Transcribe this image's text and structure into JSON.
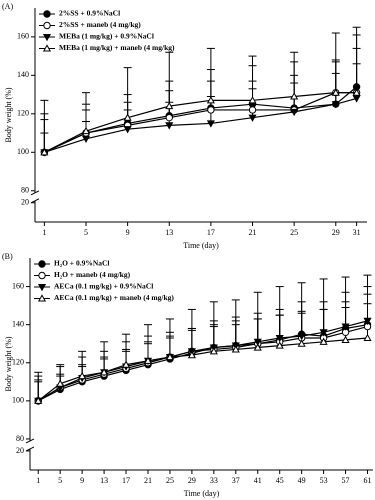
{
  "chart_data": [
    {
      "type": "line",
      "panel_label": "(A)",
      "x_label": "Time (day)",
      "y_label": "Body weight (%)",
      "x": [
        1,
        5,
        9,
        13,
        17,
        21,
        25,
        29,
        31
      ],
      "xlim": [
        0.1,
        32
      ],
      "xticks": [
        1,
        5,
        9,
        13,
        17,
        21,
        25,
        29,
        31
      ],
      "ylim": [
        10,
        175
      ],
      "yticks": [
        20,
        80,
        100,
        120,
        140,
        160
      ],
      "axis_break": [
        20,
        80
      ],
      "series": [
        {
          "name": "2%SS + 0.9%NaCl",
          "color": "#000000",
          "marker": "circle-filled",
          "values": [
            100,
            110,
            115,
            119,
            123,
            125,
            123,
            125,
            134
          ],
          "errors": [
            27,
            15,
            15,
            18,
            20,
            20,
            24,
            22,
            20
          ]
        },
        {
          "name": "2%SS + maneb (4 mg/kg)",
          "color": "#000000",
          "marker": "circle-open",
          "values": [
            100,
            110,
            114,
            118,
            122,
            122,
            122,
            131,
            131
          ],
          "errors": [
            20,
            12,
            12,
            14,
            15,
            15,
            18,
            17,
            30
          ]
        },
        {
          "name": "MEBa (1 mg/kg) + 0.9%NaCl",
          "color": "#000000",
          "marker": "triangle-down-filled",
          "values": [
            100,
            107,
            112,
            114,
            115,
            118,
            121,
            125,
            128
          ],
          "errors": [
            10,
            9,
            10,
            12,
            14,
            15,
            15,
            16,
            18
          ]
        },
        {
          "name": "MEBa (1 mg/kg) + maneb (4 mg/kg)",
          "color": "#000000",
          "marker": "triangle-up-open",
          "values": [
            100,
            111,
            118,
            124,
            127,
            127,
            129,
            131,
            131
          ],
          "errors": [
            17,
            20,
            26,
            28,
            27,
            23,
            23,
            31,
            34
          ]
        }
      ]
    },
    {
      "type": "line",
      "panel_label": "(B)",
      "x_label": "Time (day)",
      "y_label": "Body weight (%)",
      "x": [
        1,
        5,
        9,
        13,
        17,
        21,
        25,
        29,
        33,
        37,
        41,
        45,
        49,
        53,
        57,
        61
      ],
      "xlim": [
        -0.5,
        62
      ],
      "xticks": [
        1,
        5,
        9,
        13,
        17,
        21,
        25,
        29,
        33,
        37,
        41,
        45,
        49,
        53,
        57,
        61
      ],
      "ylim": [
        10,
        175
      ],
      "yticks": [
        20,
        80,
        100,
        120,
        140,
        160
      ],
      "axis_break": [
        20,
        80
      ],
      "series": [
        {
          "name": "H₂O + 0.9%NaCl",
          "color": "#000000",
          "marker": "circle-filled",
          "values": [
            100,
            106,
            110,
            113,
            116,
            119,
            122,
            125,
            128,
            129,
            130,
            132,
            135,
            134,
            138,
            140
          ],
          "errors": [
            13,
            8,
            9,
            10,
            11,
            12,
            12,
            13,
            14,
            15,
            16,
            16,
            17,
            18,
            19,
            20
          ]
        },
        {
          "name": "H₂O + maneb (4 mg/kg)",
          "color": "#000000",
          "marker": "circle-open",
          "values": [
            100,
            107,
            111,
            114,
            117,
            120,
            123,
            126,
            127,
            128,
            130,
            131,
            133,
            133,
            136,
            139
          ],
          "errors": [
            10,
            6,
            7,
            8,
            9,
            10,
            10,
            11,
            12,
            12,
            13,
            14,
            14,
            15,
            16,
            17
          ]
        },
        {
          "name": "AECa (0.1 mg/kg) + 0.9%NaCl",
          "color": "#000000",
          "marker": "triangle-down-filled",
          "values": [
            100,
            107,
            112,
            115,
            118,
            121,
            123,
            126,
            128,
            129,
            131,
            133,
            134,
            136,
            139,
            142
          ],
          "errors": [
            15,
            12,
            14,
            16,
            17,
            19,
            20,
            22,
            24,
            24,
            26,
            27,
            28,
            28,
            26,
            24
          ]
        },
        {
          "name": "AECa (0.1 mg/kg) + maneb (4 mg/kg)",
          "color": "#000000",
          "marker": "triangle-up-open",
          "values": [
            100,
            109,
            113,
            115,
            119,
            121,
            123,
            124,
            126,
            127,
            128,
            129,
            130,
            131,
            132,
            133
          ],
          "errors": [
            11,
            9,
            10,
            11,
            12,
            13,
            13,
            14,
            14,
            15,
            15,
            16,
            16,
            17,
            17,
            18
          ]
        }
      ]
    }
  ]
}
